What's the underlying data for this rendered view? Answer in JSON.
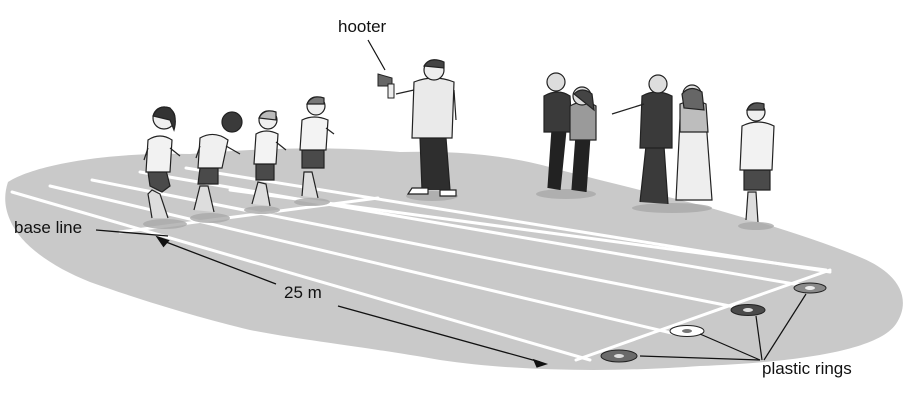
{
  "labels": {
    "hooter": "hooter",
    "base_line": "base line",
    "distance": "25 m",
    "plastic_rings": "plastic rings"
  },
  "colors": {
    "ground": "#c9c9c9",
    "ground_edge": "#b4b4b4",
    "lines": "#ffffff",
    "figure_fill": "#e8e8e8",
    "figure_dark": "#3a3a3a",
    "ink": "#111111"
  },
  "scene": {
    "runners": 4,
    "spectators": 5,
    "rings": 4
  }
}
